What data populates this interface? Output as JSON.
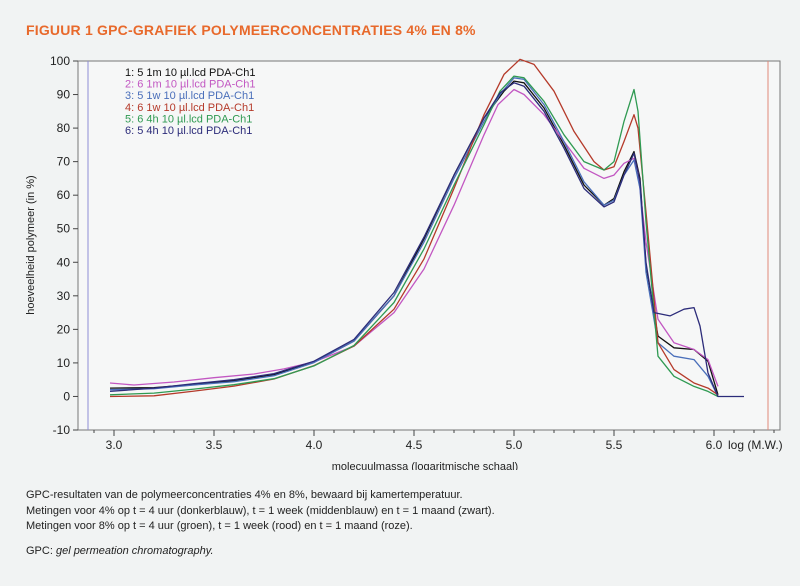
{
  "figure": {
    "title": "FIGUUR 1  GPC-GRAFIEK POLYMEERCONCENTRATIES 4% EN 8%",
    "caption_lines": [
      "GPC-resultaten van de polymeerconcentraties 4% en 8%, bewaard bij kamertemperatuur.",
      "Metingen voor 4% op t = 4 uur (donkerblauw), t = 1 week (middenblauw) en t = 1 maand (zwart).",
      "Metingen voor 8% op t = 4 uur (groen), t = 1 week (rood) en t = 1 maand (roze)."
    ],
    "footnote_prefix": "GPC: ",
    "footnote_italic": "gel permeation chromatography."
  },
  "chart_data": {
    "type": "line",
    "xlabel": "molecuulmassa (logaritmische schaal)",
    "ylabel": "hoeveelheid polymeer (in %)",
    "x_unit_label": "log (M.W.)",
    "xlim": [
      2.82,
      6.33
    ],
    "ylim": [
      -10,
      100
    ],
    "xticks": [
      3.0,
      3.5,
      4.0,
      4.5,
      5.0,
      5.5,
      6.0
    ],
    "xtick_labels": [
      "3.0",
      "3.5",
      "4.0",
      "4.5",
      "5.0",
      "5.5",
      "6.0"
    ],
    "yticks": [
      -10,
      0,
      10,
      20,
      30,
      40,
      50,
      60,
      70,
      80,
      90,
      100
    ],
    "legend_position": "top-left",
    "series": [
      {
        "name": "1: 5  1m 10 µl.lcd PDA-Ch1",
        "color": "#111111",
        "points": [
          [
            2.98,
            2.5
          ],
          [
            3.2,
            2.6
          ],
          [
            3.4,
            3.6
          ],
          [
            3.6,
            4.7
          ],
          [
            3.8,
            6.5
          ],
          [
            4.0,
            10.2
          ],
          [
            4.2,
            16.5
          ],
          [
            4.4,
            30
          ],
          [
            4.55,
            47
          ],
          [
            4.7,
            66
          ],
          [
            4.85,
            83
          ],
          [
            4.95,
            91
          ],
          [
            5.0,
            94
          ],
          [
            5.05,
            93.5
          ],
          [
            5.15,
            86
          ],
          [
            5.25,
            75
          ],
          [
            5.35,
            63
          ],
          [
            5.45,
            57
          ],
          [
            5.5,
            59
          ],
          [
            5.55,
            67
          ],
          [
            5.6,
            73
          ],
          [
            5.63,
            65
          ],
          [
            5.66,
            39
          ],
          [
            5.72,
            18
          ],
          [
            5.8,
            14.5
          ],
          [
            5.9,
            14
          ],
          [
            5.97,
            10.5
          ],
          [
            6.02,
            0.5
          ]
        ]
      },
      {
        "name": "2: 6  1m 10 µl.lcd PDA-Ch1",
        "color": "#c257c2",
        "points": [
          [
            2.98,
            4
          ],
          [
            3.1,
            3.4
          ],
          [
            3.3,
            4.3
          ],
          [
            3.5,
            5.6
          ],
          [
            3.7,
            6.7
          ],
          [
            3.85,
            8.2
          ],
          [
            4.0,
            10.3
          ],
          [
            4.2,
            15
          ],
          [
            4.4,
            25
          ],
          [
            4.55,
            38
          ],
          [
            4.7,
            57
          ],
          [
            4.85,
            78
          ],
          [
            4.92,
            87
          ],
          [
            5.0,
            91.5
          ],
          [
            5.05,
            90
          ],
          [
            5.15,
            84
          ],
          [
            5.25,
            76
          ],
          [
            5.35,
            68
          ],
          [
            5.45,
            65
          ],
          [
            5.5,
            66
          ],
          [
            5.55,
            69.5
          ],
          [
            5.6,
            71
          ],
          [
            5.62,
            67
          ],
          [
            5.66,
            46
          ],
          [
            5.72,
            23
          ],
          [
            5.8,
            16
          ],
          [
            5.9,
            14
          ],
          [
            5.97,
            11
          ],
          [
            6.02,
            3
          ]
        ]
      },
      {
        "name": "3: 5  1w 10 µl.lcd PDA-Ch1",
        "color": "#4a6fba",
        "points": [
          [
            2.98,
            2
          ],
          [
            3.2,
            2.3
          ],
          [
            3.4,
            3.4
          ],
          [
            3.6,
            4.4
          ],
          [
            3.8,
            6.2
          ],
          [
            4.0,
            10.1
          ],
          [
            4.2,
            16.5
          ],
          [
            4.4,
            30
          ],
          [
            4.55,
            46
          ],
          [
            4.7,
            65
          ],
          [
            4.85,
            82
          ],
          [
            4.93,
            90
          ],
          [
            5.0,
            95
          ],
          [
            5.05,
            94.5
          ],
          [
            5.15,
            87
          ],
          [
            5.25,
            76
          ],
          [
            5.35,
            64
          ],
          [
            5.45,
            57
          ],
          [
            5.5,
            58.5
          ],
          [
            5.55,
            66
          ],
          [
            5.6,
            70.5
          ],
          [
            5.63,
            62
          ],
          [
            5.66,
            37
          ],
          [
            5.72,
            16
          ],
          [
            5.8,
            12
          ],
          [
            5.9,
            11
          ],
          [
            5.97,
            6
          ],
          [
            6.02,
            0
          ]
        ]
      },
      {
        "name": "4: 6  1w 10 µl.lcd PDA-Ch1",
        "color": "#b53a2a",
        "points": [
          [
            2.98,
            0
          ],
          [
            3.2,
            0.2
          ],
          [
            3.4,
            1.6
          ],
          [
            3.6,
            3.1
          ],
          [
            3.8,
            5.2
          ],
          [
            4.0,
            9.2
          ],
          [
            4.2,
            15
          ],
          [
            4.4,
            26
          ],
          [
            4.55,
            41
          ],
          [
            4.7,
            62
          ],
          [
            4.85,
            84
          ],
          [
            4.95,
            96
          ],
          [
            5.03,
            100.5
          ],
          [
            5.1,
            99
          ],
          [
            5.2,
            91
          ],
          [
            5.3,
            79
          ],
          [
            5.4,
            70
          ],
          [
            5.45,
            67.5
          ],
          [
            5.5,
            68.5
          ],
          [
            5.55,
            76
          ],
          [
            5.6,
            84
          ],
          [
            5.62,
            80
          ],
          [
            5.66,
            55
          ],
          [
            5.72,
            16
          ],
          [
            5.8,
            8
          ],
          [
            5.9,
            4
          ],
          [
            5.97,
            2.5
          ],
          [
            6.02,
            0.5
          ]
        ]
      },
      {
        "name": "5: 6  4h 10 µl.lcd PDA-Ch1",
        "color": "#2f9a52",
        "points": [
          [
            2.98,
            0.5
          ],
          [
            3.2,
            1
          ],
          [
            3.4,
            2.2
          ],
          [
            3.6,
            3.5
          ],
          [
            3.8,
            5.3
          ],
          [
            4.0,
            9.1
          ],
          [
            4.2,
            15.2
          ],
          [
            4.4,
            28
          ],
          [
            4.55,
            44
          ],
          [
            4.7,
            63
          ],
          [
            4.85,
            81
          ],
          [
            4.93,
            91
          ],
          [
            5.0,
            95.5
          ],
          [
            5.05,
            95
          ],
          [
            5.15,
            88
          ],
          [
            5.25,
            78
          ],
          [
            5.35,
            70
          ],
          [
            5.45,
            67.5
          ],
          [
            5.5,
            70
          ],
          [
            5.55,
            82
          ],
          [
            5.6,
            91.5
          ],
          [
            5.62,
            85
          ],
          [
            5.66,
            52
          ],
          [
            5.72,
            12
          ],
          [
            5.8,
            6
          ],
          [
            5.9,
            3
          ],
          [
            5.97,
            1.5
          ],
          [
            6.02,
            0
          ]
        ]
      },
      {
        "name": "6: 5  4h 10 µl.lcd PDA-Ch1",
        "color": "#2c2c7a",
        "points": [
          [
            2.98,
            1.5
          ],
          [
            3.2,
            2.5
          ],
          [
            3.4,
            3.8
          ],
          [
            3.6,
            5
          ],
          [
            3.8,
            6.8
          ],
          [
            4.0,
            10.5
          ],
          [
            4.2,
            17
          ],
          [
            4.4,
            31
          ],
          [
            4.55,
            47.5
          ],
          [
            4.7,
            66
          ],
          [
            4.85,
            83
          ],
          [
            4.93,
            90.5
          ],
          [
            5.0,
            93.5
          ],
          [
            5.05,
            92.5
          ],
          [
            5.15,
            85
          ],
          [
            5.25,
            74
          ],
          [
            5.35,
            62
          ],
          [
            5.45,
            56.5
          ],
          [
            5.5,
            58
          ],
          [
            5.55,
            66
          ],
          [
            5.6,
            72.5
          ],
          [
            5.63,
            64
          ],
          [
            5.66,
            40
          ],
          [
            5.7,
            25
          ],
          [
            5.78,
            24
          ],
          [
            5.85,
            26
          ],
          [
            5.9,
            26.5
          ],
          [
            5.93,
            21
          ],
          [
            5.97,
            7
          ],
          [
            6.02,
            0
          ],
          [
            6.15,
            0
          ]
        ]
      }
    ]
  }
}
